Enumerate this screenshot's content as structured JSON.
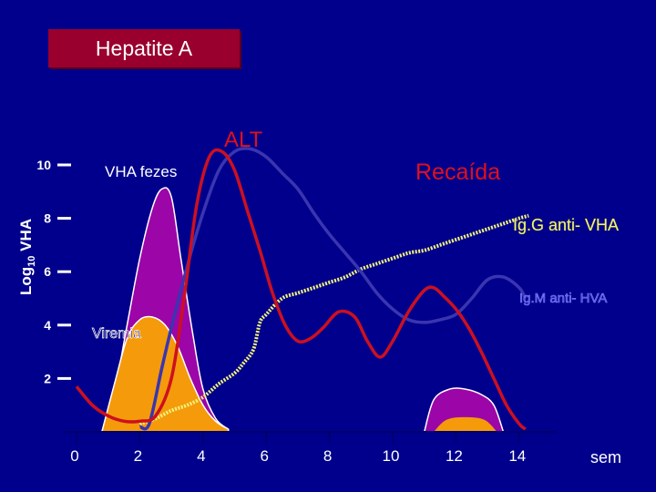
{
  "title": "Hepatite A",
  "colors": {
    "background": "#00008c",
    "title_box": "#99002e",
    "alt_line": "#cc1020",
    "igm_line": "#3a35b0",
    "igg_line": "#f3f37a",
    "fezes_fill": "#9c05a8",
    "viremia_fill": "#f59a0a"
  },
  "chart_data": {
    "type": "line",
    "title": "Hepatite A",
    "ylabel_prefix": "Log",
    "ylabel_sub": "10",
    "ylabel_suffix": " VHA",
    "xunit": "sem",
    "xticks": [
      "0",
      "2",
      "4",
      "6",
      "8",
      "10",
      "12",
      "14"
    ],
    "yticks": [
      "2",
      "4",
      "6",
      "8",
      "10"
    ],
    "xlim": [
      0,
      15
    ],
    "ylim": [
      0,
      11.5
    ],
    "grid": false,
    "annotations": {
      "alt": "ALT",
      "recaida": "Recaída",
      "vha_fezes": "VHA fezes",
      "igg": "Ig.G anti- VHA",
      "igm": "Ig.M anti- HVA",
      "viremia": "Viremia"
    },
    "series": [
      {
        "name": "ALT",
        "x": [
          0,
          0.5,
          1,
          1.5,
          2,
          2.5,
          3,
          3.4,
          3.8,
          4.2,
          4.6,
          5,
          5.4,
          5.8,
          6.2,
          6.6,
          7,
          7.4,
          7.8,
          8.3,
          8.8,
          9.2,
          9.6,
          10,
          10.5,
          11,
          11.3,
          11.6,
          12,
          12.4,
          12.8,
          13.2,
          13.6,
          14,
          14.2
        ],
        "y": [
          1.7,
          1,
          0.6,
          0.4,
          0.4,
          0.6,
          2,
          5,
          8.5,
          10.3,
          10.5,
          9.8,
          8.3,
          6.8,
          5.2,
          4,
          3.4,
          3.5,
          3.9,
          4.5,
          4.3,
          3.4,
          2.8,
          3.4,
          4.5,
          5.3,
          5.4,
          5.1,
          4.6,
          3.9,
          3,
          2,
          1,
          0.3,
          0.1
        ]
      },
      {
        "name": "Ig.M anti- HVA",
        "x": [
          2,
          2.3,
          2.7,
          3,
          3.5,
          4,
          4.5,
          5,
          5.5,
          6,
          6.5,
          7,
          7.5,
          8,
          8.5,
          9,
          9.5,
          10,
          10.5,
          11,
          11.5,
          12,
          12.5,
          13,
          13.5,
          14,
          14.2
        ],
        "y": [
          0.2,
          0.3,
          2.4,
          3.9,
          6.2,
          8.2,
          9.8,
          10.5,
          10.6,
          10.3,
          9.7,
          9.1,
          8.2,
          7.4,
          6.7,
          6,
          5.2,
          4.6,
          4.2,
          4.1,
          4.2,
          4.4,
          5,
          5.7,
          5.8,
          5.4,
          5
        ]
      },
      {
        "name": "Ig.G anti- VHA",
        "x": [
          2,
          2.5,
          3,
          3.5,
          4,
          4.5,
          5,
          5.3,
          5.6,
          5.8,
          6,
          6.5,
          7,
          7.5,
          8,
          8.5,
          9,
          9.5,
          10,
          10.5,
          11,
          11.5,
          12,
          12.5,
          13,
          13.5,
          14,
          14.3
        ],
        "y": [
          0.3,
          0.5,
          0.8,
          1,
          1.3,
          1.8,
          2.2,
          2.6,
          3.1,
          4.1,
          4.4,
          5,
          5.2,
          5.4,
          5.6,
          5.8,
          6.1,
          6.3,
          6.5,
          6.7,
          6.8,
          7,
          7.2,
          7.4,
          7.6,
          7.8,
          8,
          8.1
        ]
      },
      {
        "name": "VHA fezes",
        "x": [
          0.8,
          1.2,
          1.6,
          2,
          2.4,
          2.7,
          3,
          3.3,
          3.7,
          4,
          4.4,
          4.8
        ],
        "y": [
          0,
          1.5,
          4,
          6.5,
          8.4,
          9.1,
          8.8,
          6.5,
          3.5,
          1.6,
          0.5,
          0.1
        ]
      },
      {
        "name": "Viremia",
        "x": [
          0.8,
          1.2,
          1.6,
          2,
          2.4,
          2.8,
          3.2,
          3.6,
          4,
          4.4,
          4.8
        ],
        "y": [
          0,
          1.8,
          3.5,
          4.2,
          4.3,
          4,
          3.2,
          2,
          1,
          0.4,
          0.1
        ]
      },
      {
        "name": "Recaída fezes",
        "x": [
          11,
          11.3,
          11.8,
          12.3,
          12.8,
          13.2,
          13.5
        ],
        "y": [
          0,
          1.2,
          1.6,
          1.6,
          1.4,
          1,
          0
        ]
      }
    ]
  }
}
